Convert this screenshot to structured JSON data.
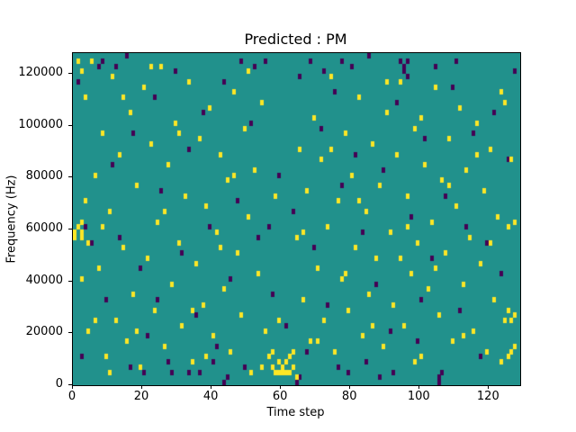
{
  "figure": {
    "title": "Predicted : PM",
    "xlabel": "Time step",
    "ylabel": "Frequency (Hz)"
  },
  "chart_data": {
    "type": "heatmap",
    "title": "Predicted : PM",
    "xlabel": "Time step",
    "ylabel": "Frequency (Hz)",
    "xlim": [
      0,
      129
    ],
    "ylim": [
      0,
      128000
    ],
    "grid": {
      "n_time_steps": 129,
      "n_freq_bins": 64,
      "freq_bin_hz": 2000,
      "gridlines": false
    },
    "xticks": [
      0,
      20,
      40,
      60,
      80,
      100,
      120
    ],
    "xtick_labels": [
      "0",
      "20",
      "40",
      "60",
      "80",
      "100",
      "120"
    ],
    "yticks": [
      0,
      20000,
      40000,
      60000,
      80000,
      100000,
      120000
    ],
    "ytick_labels": [
      "0",
      "20000",
      "40000",
      "60000",
      "80000",
      "100000",
      "120000"
    ],
    "legend": "none",
    "colors": {
      "background_class": "#21918c",
      "high_class": "#fde725",
      "low_class": "#440154",
      "figure_background": "#ffffff"
    },
    "yellow_cells": [
      [
        0,
        29
      ],
      [
        0,
        28
      ],
      [
        1,
        62
      ],
      [
        1,
        30
      ],
      [
        2,
        60
      ],
      [
        2,
        29
      ],
      [
        2,
        28
      ],
      [
        2,
        20
      ],
      [
        2,
        31
      ],
      [
        3,
        55
      ],
      [
        3,
        35
      ],
      [
        4,
        10
      ],
      [
        4,
        27
      ],
      [
        5,
        62
      ],
      [
        6,
        40
      ],
      [
        6,
        12
      ],
      [
        7,
        22
      ],
      [
        8,
        48
      ],
      [
        8,
        30
      ],
      [
        9,
        5
      ],
      [
        10,
        33
      ],
      [
        10,
        2
      ],
      [
        11,
        59
      ],
      [
        12,
        12
      ],
      [
        13,
        44
      ],
      [
        14,
        26
      ],
      [
        14,
        55
      ],
      [
        15,
        8
      ],
      [
        16,
        52
      ],
      [
        17,
        17
      ],
      [
        18,
        38
      ],
      [
        18,
        10
      ],
      [
        19,
        3
      ],
      [
        20,
        57
      ],
      [
        21,
        24
      ],
      [
        22,
        46
      ],
      [
        22,
        61
      ],
      [
        23,
        14
      ],
      [
        24,
        31
      ],
      [
        25,
        61
      ],
      [
        26,
        7
      ],
      [
        26,
        33
      ],
      [
        27,
        42
      ],
      [
        28,
        19
      ],
      [
        29,
        50
      ],
      [
        30,
        27
      ],
      [
        30,
        48
      ],
      [
        31,
        11
      ],
      [
        32,
        36
      ],
      [
        33,
        58
      ],
      [
        34,
        4
      ],
      [
        34,
        14
      ],
      [
        35,
        23
      ],
      [
        36,
        47
      ],
      [
        37,
        15
      ],
      [
        38,
        34
      ],
      [
        38,
        5
      ],
      [
        39,
        53
      ],
      [
        40,
        9
      ],
      [
        41,
        29
      ],
      [
        42,
        44
      ],
      [
        42,
        26
      ],
      [
        43,
        18
      ],
      [
        44,
        39
      ],
      [
        45,
        6
      ],
      [
        46,
        56
      ],
      [
        46,
        40
      ],
      [
        47,
        25
      ],
      [
        48,
        13
      ],
      [
        49,
        49
      ],
      [
        50,
        32
      ],
      [
        50,
        60
      ],
      [
        51,
        2
      ],
      [
        52,
        41
      ],
      [
        53,
        21
      ],
      [
        54,
        54
      ],
      [
        54,
        3
      ],
      [
        55,
        10
      ],
      [
        56,
        5
      ],
      [
        57,
        3
      ],
      [
        57,
        6
      ],
      [
        58,
        2
      ],
      [
        58,
        36
      ],
      [
        59,
        4
      ],
      [
        59,
        12
      ],
      [
        59,
        2
      ],
      [
        60,
        3
      ],
      [
        60,
        2
      ],
      [
        61,
        2
      ],
      [
        61,
        4
      ],
      [
        62,
        5
      ],
      [
        62,
        2
      ],
      [
        63,
        3
      ],
      [
        63,
        6
      ],
      [
        64,
        28
      ],
      [
        64,
        1
      ],
      [
        65,
        45
      ],
      [
        66,
        16
      ],
      [
        66,
        29
      ],
      [
        67,
        37
      ],
      [
        68,
        8
      ],
      [
        69,
        51
      ],
      [
        70,
        22
      ],
      [
        70,
        8
      ],
      [
        71,
        43
      ],
      [
        72,
        12
      ],
      [
        73,
        30
      ],
      [
        74,
        59
      ],
      [
        74,
        45
      ],
      [
        75,
        6
      ],
      [
        76,
        35
      ],
      [
        77,
        20
      ],
      [
        78,
        48
      ],
      [
        78,
        21
      ],
      [
        79,
        14
      ],
      [
        80,
        40
      ],
      [
        81,
        26
      ],
      [
        82,
        55
      ],
      [
        82,
        35
      ],
      [
        83,
        9
      ],
      [
        84,
        33
      ],
      [
        85,
        17
      ],
      [
        86,
        46
      ],
      [
        86,
        11
      ],
      [
        87,
        24
      ],
      [
        88,
        38
      ],
      [
        89,
        7
      ],
      [
        90,
        52
      ],
      [
        90,
        58
      ],
      [
        91,
        29
      ],
      [
        92,
        15
      ],
      [
        93,
        44
      ],
      [
        94,
        58
      ],
      [
        94,
        24
      ],
      [
        95,
        11
      ],
      [
        96,
        36
      ],
      [
        96,
        30
      ],
      [
        97,
        21
      ],
      [
        98,
        49
      ],
      [
        98,
        4
      ],
      [
        99,
        27
      ],
      [
        100,
        5
      ],
      [
        100,
        51
      ],
      [
        101,
        42
      ],
      [
        102,
        18
      ],
      [
        103,
        31
      ],
      [
        104,
        57
      ],
      [
        104,
        22
      ],
      [
        105,
        13
      ],
      [
        106,
        39
      ],
      [
        107,
        25
      ],
      [
        108,
        47
      ],
      [
        108,
        38
      ],
      [
        109,
        8
      ],
      [
        110,
        34
      ],
      [
        111,
        53
      ],
      [
        112,
        19
      ],
      [
        112,
        9
      ],
      [
        113,
        41
      ],
      [
        114,
        28
      ],
      [
        115,
        10
      ],
      [
        116,
        50
      ],
      [
        116,
        44
      ],
      [
        117,
        23
      ],
      [
        118,
        37
      ],
      [
        119,
        6
      ],
      [
        120,
        45
      ],
      [
        120,
        27
      ],
      [
        121,
        16
      ],
      [
        122,
        32
      ],
      [
        123,
        56
      ],
      [
        123,
        4
      ],
      [
        124,
        12
      ],
      [
        124,
        54
      ],
      [
        125,
        30
      ],
      [
        125,
        5
      ],
      [
        125,
        14
      ],
      [
        126,
        43
      ],
      [
        126,
        6
      ],
      [
        126,
        12
      ],
      [
        127,
        7
      ],
      [
        127,
        31
      ],
      [
        127,
        13
      ]
    ],
    "purple_cells": [
      [
        1,
        58
      ],
      [
        2,
        5
      ],
      [
        3,
        30
      ],
      [
        5,
        27
      ],
      [
        7,
        61
      ],
      [
        8,
        62
      ],
      [
        9,
        16
      ],
      [
        11,
        42
      ],
      [
        12,
        61
      ],
      [
        13,
        28
      ],
      [
        15,
        63
      ],
      [
        16,
        3
      ],
      [
        17,
        48
      ],
      [
        19,
        22
      ],
      [
        20,
        2
      ],
      [
        21,
        9
      ],
      [
        23,
        55
      ],
      [
        24,
        16
      ],
      [
        25,
        37
      ],
      [
        27,
        4
      ],
      [
        28,
        2
      ],
      [
        29,
        60
      ],
      [
        31,
        25
      ],
      [
        33,
        45
      ],
      [
        33,
        2
      ],
      [
        35,
        13
      ],
      [
        36,
        2
      ],
      [
        37,
        52
      ],
      [
        39,
        30
      ],
      [
        40,
        4
      ],
      [
        41,
        7
      ],
      [
        43,
        58
      ],
      [
        43,
        0
      ],
      [
        44,
        1
      ],
      [
        45,
        20
      ],
      [
        47,
        35
      ],
      [
        48,
        62
      ],
      [
        49,
        3
      ],
      [
        51,
        50
      ],
      [
        52,
        61
      ],
      [
        53,
        28
      ],
      [
        55,
        62
      ],
      [
        56,
        30
      ],
      [
        57,
        17
      ],
      [
        59,
        40
      ],
      [
        61,
        11
      ],
      [
        63,
        33
      ],
      [
        64,
        0
      ],
      [
        65,
        59
      ],
      [
        65,
        1
      ],
      [
        67,
        6
      ],
      [
        68,
        62
      ],
      [
        69,
        26
      ],
      [
        71,
        49
      ],
      [
        72,
        60
      ],
      [
        73,
        15
      ],
      [
        75,
        56
      ],
      [
        76,
        3
      ],
      [
        77,
        38
      ],
      [
        77,
        62
      ],
      [
        79,
        2
      ],
      [
        80,
        61
      ],
      [
        81,
        44
      ],
      [
        83,
        29
      ],
      [
        84,
        4
      ],
      [
        85,
        63
      ],
      [
        87,
        19
      ],
      [
        88,
        1
      ],
      [
        89,
        41
      ],
      [
        91,
        10
      ],
      [
        92,
        2
      ],
      [
        93,
        54
      ],
      [
        94,
        62
      ],
      [
        95,
        61
      ],
      [
        95,
        60
      ],
      [
        96,
        59
      ],
      [
        96,
        62
      ],
      [
        97,
        32
      ],
      [
        99,
        8
      ],
      [
        100,
        16
      ],
      [
        101,
        47
      ],
      [
        103,
        24
      ],
      [
        104,
        61
      ],
      [
        105,
        0
      ],
      [
        105,
        1
      ],
      [
        106,
        2
      ],
      [
        107,
        36
      ],
      [
        109,
        57
      ],
      [
        110,
        62
      ],
      [
        111,
        14
      ],
      [
        113,
        30
      ],
      [
        115,
        48
      ],
      [
        117,
        5
      ],
      [
        119,
        27
      ],
      [
        121,
        52
      ],
      [
        123,
        21
      ],
      [
        125,
        43
      ],
      [
        127,
        60
      ]
    ]
  }
}
